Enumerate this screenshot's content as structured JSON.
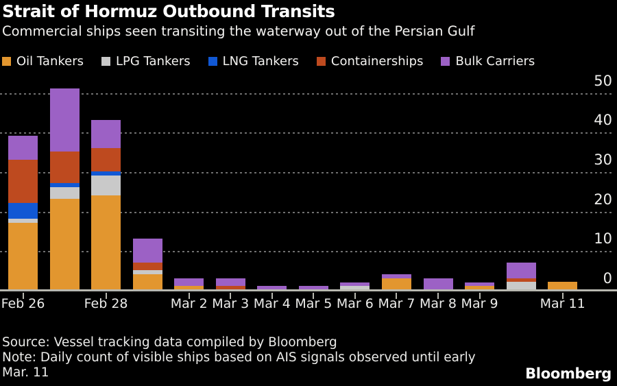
{
  "header": {
    "title": "Strait of Hormuz Outbound Transits",
    "subtitle": "Commercial ships seen transiting the waterway out of the Persian Gulf"
  },
  "legend": [
    {
      "label": "Oil Tankers",
      "color": "#E2962F"
    },
    {
      "label": "LPG Tankers",
      "color": "#C9C9C9"
    },
    {
      "label": "LNG Tankers",
      "color": "#1158D4"
    },
    {
      "label": "Containerships",
      "color": "#BE4A1F"
    },
    {
      "label": "Bulk Carriers",
      "color": "#9C61C5"
    }
  ],
  "chart_data": {
    "type": "bar",
    "stacked": true,
    "title": "Strait of Hormuz Outbound Transits",
    "subtitle": "Commercial ships seen transiting the waterway out of the Persian Gulf",
    "categories": [
      "Feb 26",
      "Feb 27",
      "Feb 28",
      "Mar 1",
      "Mar 2",
      "Mar 3",
      "Mar 4",
      "Mar 5",
      "Mar 6",
      "Mar 7",
      "Mar 8",
      "Mar 9",
      "Mar 10",
      "Mar 11"
    ],
    "x_tick_labels": [
      "Feb 26",
      "",
      "Feb 28",
      "",
      "Mar 2",
      "Mar 3",
      "Mar 4",
      "Mar 5",
      "Mar 6",
      "Mar 7",
      "Mar 8",
      "Mar 9",
      "",
      "Mar 11"
    ],
    "series": [
      {
        "name": "Oil Tankers",
        "color": "#E2962F",
        "values": [
          17,
          23,
          24,
          4,
          1,
          0,
          0,
          0,
          0,
          3,
          0,
          1,
          0,
          2
        ]
      },
      {
        "name": "LPG Tankers",
        "color": "#C9C9C9",
        "values": [
          1,
          3,
          5,
          1,
          0,
          0,
          0,
          0,
          1,
          0,
          0,
          0,
          2,
          0
        ]
      },
      {
        "name": "LNG Tankers",
        "color": "#1158D4",
        "values": [
          4,
          1,
          1,
          0,
          0,
          0,
          0,
          0,
          0,
          0,
          0,
          0,
          0,
          0
        ]
      },
      {
        "name": "Containerships",
        "color": "#BE4A1F",
        "values": [
          11,
          8,
          6,
          2,
          0,
          1,
          0,
          0,
          0,
          0,
          0,
          0,
          1,
          0
        ]
      },
      {
        "name": "Bulk Carriers",
        "color": "#9C61C5",
        "values": [
          6,
          16,
          7,
          6,
          2,
          2,
          1,
          1,
          1,
          1,
          3,
          1,
          4,
          0
        ]
      }
    ],
    "totals": [
      39,
      51,
      43,
      13,
      3,
      3,
      1,
      1,
      2,
      4,
      3,
      2,
      7,
      2
    ],
    "ylim": [
      0,
      50
    ],
    "yticks": [
      0,
      10,
      20,
      30,
      40,
      50
    ],
    "grid": "dotted-horizontal",
    "legend_position": "top",
    "y_axis_side": "right"
  },
  "footer": {
    "source": "Source: Vessel tracking data compiled by Bloomberg",
    "note_line1": "Note: Daily count of visible ships based on AIS signals observed until early",
    "note_line2": "Mar. 11",
    "brand": "Bloomberg"
  }
}
